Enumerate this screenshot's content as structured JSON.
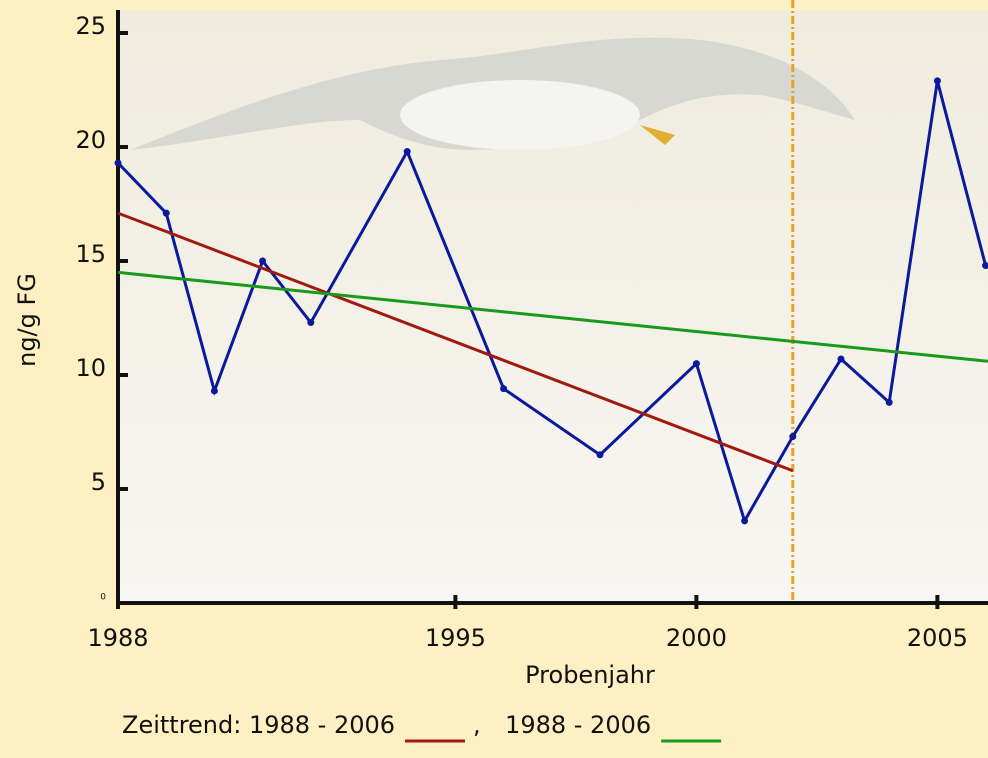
{
  "chart_data": {
    "type": "line",
    "xlabel": "Probenjahr",
    "ylabel": "ng/g FG",
    "xlim": [
      1988,
      2006.05
    ],
    "ylim": [
      0,
      25
    ],
    "xticks": [
      1988,
      1995,
      2000,
      2005
    ],
    "yticks": [
      0,
      5,
      10,
      15,
      20,
      25
    ],
    "vline": {
      "x": 2002,
      "color": "#f0a020"
    },
    "series": [
      {
        "color": "#0a1a9a",
        "markers": true,
        "x": [
          1988,
          1989,
          1990,
          1991,
          1992,
          1994,
          1996,
          1998,
          2000,
          2001,
          2002,
          2003,
          2004,
          2005,
          2006
        ],
        "values": [
          19.3,
          17.1,
          9.3,
          15.0,
          12.3,
          19.8,
          9.4,
          6.5,
          10.5,
          3.6,
          7.3,
          10.7,
          8.8,
          22.9,
          14.8
        ]
      },
      {
        "name": "Zeittrend: 1988  - 2006",
        "color": "#a01a10",
        "markers": false,
        "x": [
          1988,
          2002
        ],
        "values": [
          17.1,
          5.8
        ]
      },
      {
        "name": "1988 - 2006",
        "color": "#1a9a1a",
        "markers": false,
        "x": [
          1988,
          2006.05
        ],
        "values": [
          14.5,
          10.6
        ]
      }
    ]
  }
}
